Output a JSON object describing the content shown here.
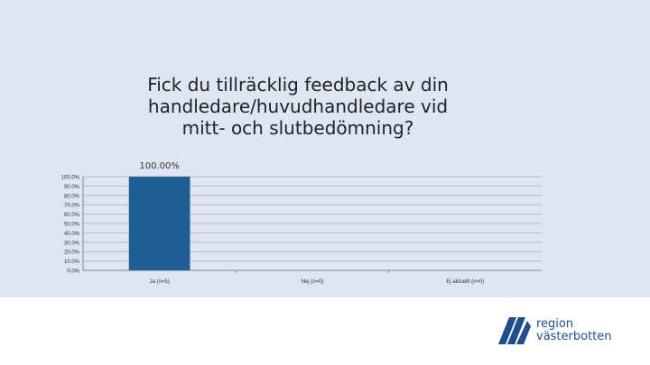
{
  "chart_data": {
    "type": "bar",
    "title": "Fick du tillräcklig feedback av din handledare/huvudhandledare vid mitt- och slutbedömning?",
    "categories": [
      "Ja (n=5)",
      "Nej (n=0)",
      "Ej aktuellt (n=0)"
    ],
    "values": [
      100,
      0,
      0
    ],
    "data_labels": [
      "100.00%",
      "",
      ""
    ],
    "ylim": [
      0,
      100
    ],
    "yticks": [
      0,
      10,
      20,
      30,
      40,
      50,
      60,
      70,
      80,
      90,
      100
    ],
    "ytick_labels": [
      "0.0%",
      "10.0%",
      "20.0%",
      "30.0%",
      "40.0%",
      "50.0%",
      "60.0%",
      "70.0%",
      "80.0%",
      "90.0%",
      "100.0%"
    ],
    "grid": true,
    "bar_color": "#1f5f96"
  },
  "logo": {
    "line1": "region",
    "line2": "västerbotten",
    "color": "#1f4e8c"
  }
}
